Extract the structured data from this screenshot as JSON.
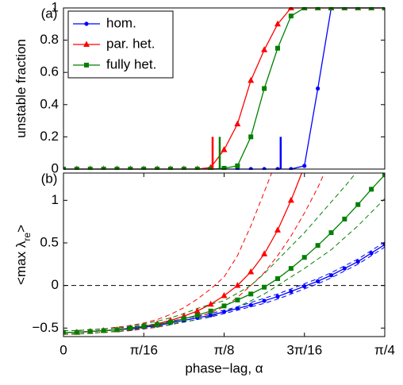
{
  "chart_data": [
    {
      "type": "line",
      "panel_label": "(a)",
      "ylabel": "unstable fraction",
      "x": [
        0,
        0.0327,
        0.0654,
        0.0982,
        0.1309,
        0.1636,
        0.1963,
        0.2291,
        0.2618,
        0.2945,
        0.3272,
        0.36,
        0.3927,
        0.4254,
        0.4581,
        0.4909,
        0.5236,
        0.5563,
        0.589,
        0.6218,
        0.6545,
        0.6872,
        0.7199,
        0.7527,
        0.7854
      ],
      "xlim": [
        0,
        0.7854
      ],
      "ylim": [
        0,
        1
      ],
      "yticks": [
        0,
        0.2,
        0.4,
        0.6,
        0.8,
        1
      ],
      "legend": "upper left",
      "series": [
        {
          "name": "hom.",
          "color": "#0000ff",
          "marker": "circle",
          "values": [
            0,
            0,
            0,
            0,
            0,
            0,
            0,
            0,
            0,
            0,
            0,
            0,
            0,
            0,
            0,
            0,
            0,
            0,
            0.02,
            0.5,
            1,
            1,
            1,
            1,
            1
          ]
        },
        {
          "name": "par. het.",
          "color": "#ff0000",
          "marker": "triangle",
          "values": [
            0,
            0,
            0,
            0,
            0,
            0,
            0,
            0,
            0,
            0,
            0,
            0.01,
            0.12,
            0.28,
            0.55,
            0.74,
            0.9,
            1,
            1,
            1,
            1,
            1,
            1,
            1,
            1
          ]
        },
        {
          "name": "fully het.",
          "color": "#008000",
          "marker": "square",
          "values": [
            0,
            0,
            0,
            0,
            0,
            0,
            0,
            0,
            0,
            0,
            0,
            0,
            0.005,
            0.02,
            0.2,
            0.5,
            0.75,
            0.95,
            1,
            1,
            1,
            1,
            1,
            1,
            1
          ]
        }
      ],
      "vlines": [
        {
          "x": 0.3646,
          "height": 0.2,
          "color": "#ff0000"
        },
        {
          "x": 0.382,
          "height": 0.2,
          "color": "#008000"
        },
        {
          "x": 0.531,
          "height": 0.2,
          "color": "#0000ff"
        }
      ]
    },
    {
      "type": "line",
      "panel_label": "(b)",
      "ylabel": "<max λ",
      "ylabel_sub": "re",
      "ylabel_end": ">",
      "xlabel": "phase−lag, α",
      "x": [
        0,
        0.0327,
        0.0654,
        0.0982,
        0.1309,
        0.1636,
        0.1963,
        0.2291,
        0.2618,
        0.2945,
        0.3272,
        0.36,
        0.3927,
        0.4254,
        0.4581,
        0.4909,
        0.5236,
        0.5563,
        0.589,
        0.6218,
        0.6545,
        0.6872,
        0.7199,
        0.7527,
        0.7854
      ],
      "xlim": [
        0,
        0.7854
      ],
      "ylim": [
        -0.6,
        1.32
      ],
      "xticks": [
        0,
        {
          "value": 0.19635,
          "label": "π/16"
        },
        {
          "value": 0.3927,
          "label": "π/8"
        },
        {
          "value": 0.58905,
          "label": "3π/16"
        },
        {
          "value": 0.7854,
          "label": "π/4"
        }
      ],
      "yticks": [
        {
          "value": -0.5,
          "label": "−0.5"
        },
        0,
        0.5,
        1
      ],
      "hline": 0,
      "series": [
        {
          "name": "hom.",
          "color": "#0000ff",
          "marker": "circle",
          "values": [
            -0.55,
            -0.55,
            -0.54,
            -0.53,
            -0.52,
            -0.51,
            -0.49,
            -0.47,
            -0.44,
            -0.41,
            -0.38,
            -0.35,
            -0.31,
            -0.27,
            -0.23,
            -0.18,
            -0.13,
            -0.07,
            -0.01,
            0.05,
            0.12,
            0.2,
            0.28,
            0.38,
            0.48
          ]
        },
        {
          "name": "par. het.",
          "color": "#ff0000",
          "marker": "triangle",
          "values": [
            -0.55,
            -0.55,
            -0.54,
            -0.53,
            -0.52,
            -0.5,
            -0.48,
            -0.45,
            -0.41,
            -0.36,
            -0.3,
            -0.22,
            -0.12,
            0,
            0.16,
            0.37,
            0.65,
            1,
            1.4,
            null,
            null,
            null,
            null,
            null,
            null
          ]
        },
        {
          "name": "fully het.",
          "color": "#008000",
          "marker": "square",
          "values": [
            -0.55,
            -0.55,
            -0.54,
            -0.53,
            -0.52,
            -0.5,
            -0.48,
            -0.46,
            -0.43,
            -0.39,
            -0.35,
            -0.3,
            -0.24,
            -0.17,
            -0.1,
            -0.02,
            0.08,
            0.2,
            0.33,
            0.47,
            0.62,
            0.78,
            0.95,
            1.13,
            1.3
          ]
        }
      ],
      "bands": [
        {
          "color": "#0000ff",
          "values": [
            -0.53,
            -0.53,
            -0.52,
            -0.51,
            -0.5,
            -0.49,
            -0.47,
            -0.45,
            -0.42,
            -0.39,
            -0.36,
            -0.33,
            -0.29,
            -0.25,
            -0.2,
            -0.15,
            -0.1,
            -0.04,
            0.02,
            0.08,
            0.15,
            0.23,
            0.31,
            0.41,
            0.51
          ]
        },
        {
          "color": "#0000ff",
          "values": [
            -0.57,
            -0.57,
            -0.56,
            -0.55,
            -0.54,
            -0.53,
            -0.51,
            -0.49,
            -0.46,
            -0.43,
            -0.4,
            -0.37,
            -0.33,
            -0.29,
            -0.25,
            -0.21,
            -0.16,
            -0.1,
            -0.04,
            0.02,
            0.09,
            0.17,
            0.25,
            0.35,
            0.45
          ]
        },
        {
          "color": "#ff0000",
          "values": [
            -0.53,
            -0.53,
            -0.52,
            -0.51,
            -0.49,
            -0.47,
            -0.44,
            -0.4,
            -0.34,
            -0.26,
            -0.16,
            -0.04,
            0.1,
            0.35,
            0.7,
            1.1,
            1.5,
            null,
            null,
            null,
            null,
            null,
            null,
            null,
            null
          ]
        },
        {
          "color": "#ff0000",
          "values": [
            -0.57,
            -0.57,
            -0.56,
            -0.55,
            -0.54,
            -0.53,
            -0.51,
            -0.49,
            -0.46,
            -0.42,
            -0.37,
            -0.32,
            -0.25,
            -0.14,
            0,
            0.15,
            0.35,
            0.58,
            0.85,
            1.15,
            1.5,
            null,
            null,
            null,
            null
          ]
        },
        {
          "color": "#008000",
          "values": [
            -0.53,
            -0.53,
            -0.52,
            -0.51,
            -0.5,
            -0.48,
            -0.45,
            -0.42,
            -0.38,
            -0.33,
            -0.27,
            -0.22,
            -0.18,
            -0.09,
            0,
            0.14,
            0.3,
            0.46,
            0.62,
            0.8,
            0.98,
            1.16,
            1.35,
            null,
            null
          ]
        },
        {
          "color": "#008000",
          "values": [
            -0.57,
            -0.57,
            -0.56,
            -0.55,
            -0.54,
            -0.52,
            -0.5,
            -0.48,
            -0.46,
            -0.43,
            -0.4,
            -0.36,
            -0.31,
            -0.25,
            -0.18,
            -0.1,
            0,
            0.1,
            0.2,
            0.31,
            0.42,
            0.56,
            0.7,
            0.86,
            1.02
          ]
        }
      ]
    }
  ]
}
